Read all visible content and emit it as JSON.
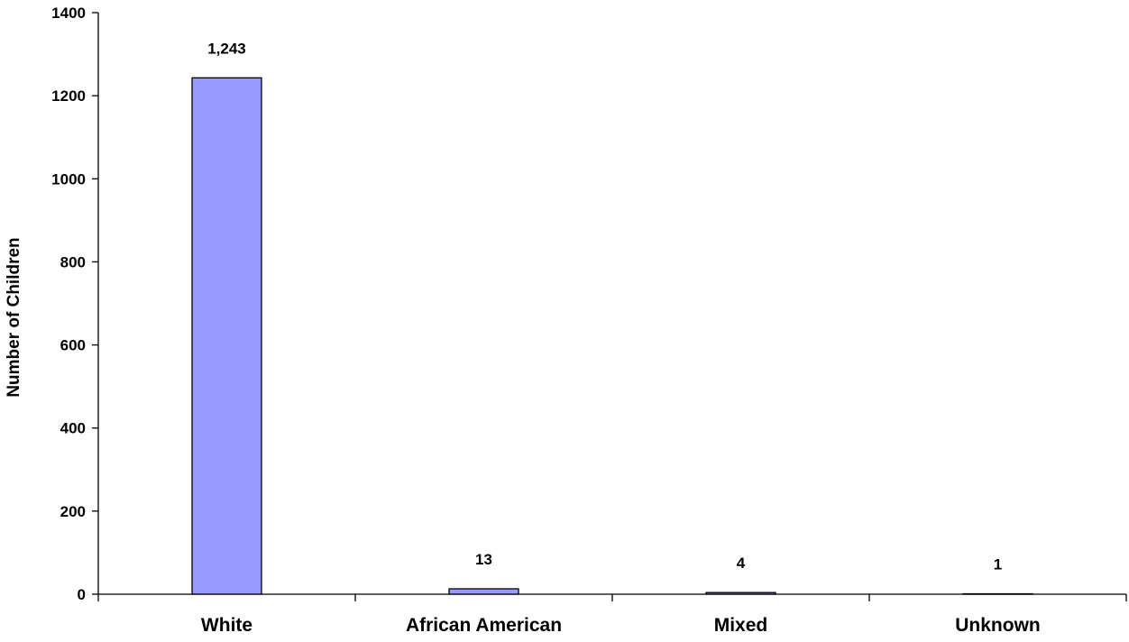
{
  "chart_data": {
    "type": "bar",
    "title": "",
    "xlabel": "",
    "ylabel": "Number of Children",
    "categories": [
      "White",
      "African American",
      "Mixed",
      "Unknown"
    ],
    "values": [
      1243,
      13,
      4,
      1
    ],
    "data_labels": [
      "1,243",
      "13",
      "4",
      "1"
    ],
    "ylim": [
      0,
      1400
    ],
    "yticks": [
      0,
      200,
      400,
      600,
      800,
      1000,
      1200,
      1400
    ],
    "grid": false,
    "legend": "none",
    "bar_color": "#9999ff",
    "bar_edge_color": "#000000"
  }
}
